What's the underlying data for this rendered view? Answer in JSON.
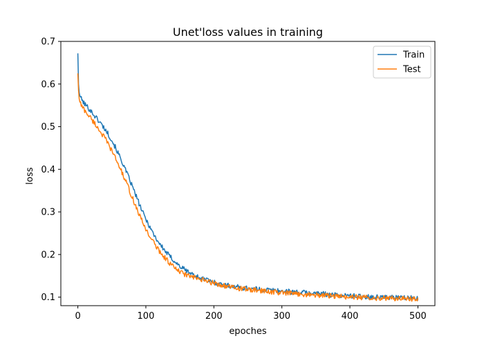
{
  "chart_data": {
    "type": "line",
    "title": "Unet'loss values in training",
    "xlabel": "epoches",
    "ylabel": "loss",
    "xlim": [
      -25,
      525
    ],
    "ylim": [
      0.08,
      0.7
    ],
    "xticks": [
      0,
      100,
      200,
      300,
      400,
      500
    ],
    "xtick_labels": [
      "0",
      "100",
      "200",
      "300",
      "400",
      "500"
    ],
    "yticks": [
      0.1,
      0.2,
      0.3,
      0.4,
      0.5,
      0.6,
      0.7
    ],
    "ytick_labels": [
      "0.1",
      "0.2",
      "0.3",
      "0.4",
      "0.5",
      "0.6",
      "0.7"
    ],
    "grid": false,
    "legend_position": "top-right",
    "series": [
      {
        "name": "Train",
        "color": "#1f77b4",
        "x": [
          0,
          1,
          2,
          5,
          10,
          15,
          20,
          25,
          30,
          35,
          40,
          45,
          50,
          55,
          60,
          65,
          70,
          75,
          80,
          85,
          90,
          95,
          100,
          105,
          110,
          115,
          120,
          125,
          130,
          135,
          140,
          145,
          150,
          160,
          170,
          180,
          190,
          200,
          210,
          220,
          230,
          240,
          250,
          260,
          270,
          280,
          290,
          300,
          310,
          320,
          330,
          340,
          350,
          360,
          370,
          380,
          390,
          400,
          410,
          420,
          430,
          440,
          450,
          460,
          470,
          480,
          490,
          500
        ],
        "y": [
          0.672,
          0.6,
          0.58,
          0.565,
          0.553,
          0.545,
          0.535,
          0.525,
          0.515,
          0.505,
          0.494,
          0.482,
          0.468,
          0.452,
          0.435,
          0.418,
          0.398,
          0.38,
          0.36,
          0.34,
          0.32,
          0.3,
          0.283,
          0.268,
          0.252,
          0.238,
          0.226,
          0.215,
          0.205,
          0.196,
          0.188,
          0.18,
          0.172,
          0.162,
          0.152,
          0.145,
          0.14,
          0.135,
          0.13,
          0.127,
          0.125,
          0.122,
          0.121,
          0.119,
          0.118,
          0.117,
          0.116,
          0.114,
          0.113,
          0.112,
          0.111,
          0.11,
          0.109,
          0.108,
          0.106,
          0.105,
          0.104,
          0.103,
          0.102,
          0.101,
          0.101,
          0.1,
          0.1,
          0.099,
          0.099,
          0.098,
          0.098,
          0.098
        ]
      },
      {
        "name": "Test",
        "color": "#ff7f0e",
        "x": [
          0,
          1,
          2,
          5,
          10,
          15,
          20,
          25,
          30,
          35,
          40,
          45,
          50,
          55,
          60,
          65,
          70,
          75,
          80,
          85,
          90,
          95,
          100,
          105,
          110,
          115,
          120,
          125,
          130,
          135,
          140,
          145,
          150,
          160,
          170,
          180,
          190,
          200,
          210,
          220,
          230,
          240,
          250,
          260,
          270,
          280,
          290,
          300,
          310,
          320,
          330,
          340,
          350,
          360,
          370,
          380,
          390,
          400,
          410,
          420,
          430,
          440,
          450,
          460,
          470,
          480,
          490,
          500
        ],
        "y": [
          0.625,
          0.585,
          0.565,
          0.55,
          0.538,
          0.528,
          0.518,
          0.507,
          0.496,
          0.484,
          0.472,
          0.458,
          0.443,
          0.427,
          0.41,
          0.392,
          0.373,
          0.354,
          0.334,
          0.314,
          0.294,
          0.276,
          0.26,
          0.245,
          0.232,
          0.219,
          0.208,
          0.198,
          0.189,
          0.18,
          0.172,
          0.165,
          0.159,
          0.152,
          0.146,
          0.141,
          0.137,
          0.133,
          0.129,
          0.125,
          0.122,
          0.12,
          0.118,
          0.116,
          0.115,
          0.113,
          0.112,
          0.11,
          0.109,
          0.108,
          0.107,
          0.106,
          0.105,
          0.104,
          0.103,
          0.102,
          0.101,
          0.1,
          0.1,
          0.099,
          0.099,
          0.098,
          0.098,
          0.097,
          0.097,
          0.097,
          0.096,
          0.096
        ]
      }
    ]
  }
}
